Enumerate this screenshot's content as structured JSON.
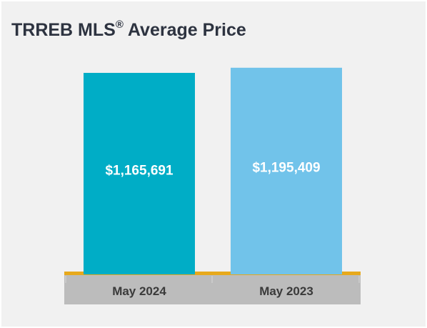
{
  "title": {
    "main": "TRREB MLS",
    "superscript": "®",
    "rest": " Average Price"
  },
  "chart_data": {
    "type": "bar",
    "categories": [
      "May 2024",
      "May 2023"
    ],
    "values": [
      1165691,
      1195409
    ],
    "data_labels": [
      "$1,165,691",
      "$1,195,409"
    ],
    "colors": [
      "#00adc6",
      "#71c3ea"
    ],
    "axis_line_color": "#e7a91c",
    "category_band_color": "#bcbcbc",
    "ylim": [
      0,
      1240000
    ],
    "grid": false,
    "legend": "none"
  }
}
